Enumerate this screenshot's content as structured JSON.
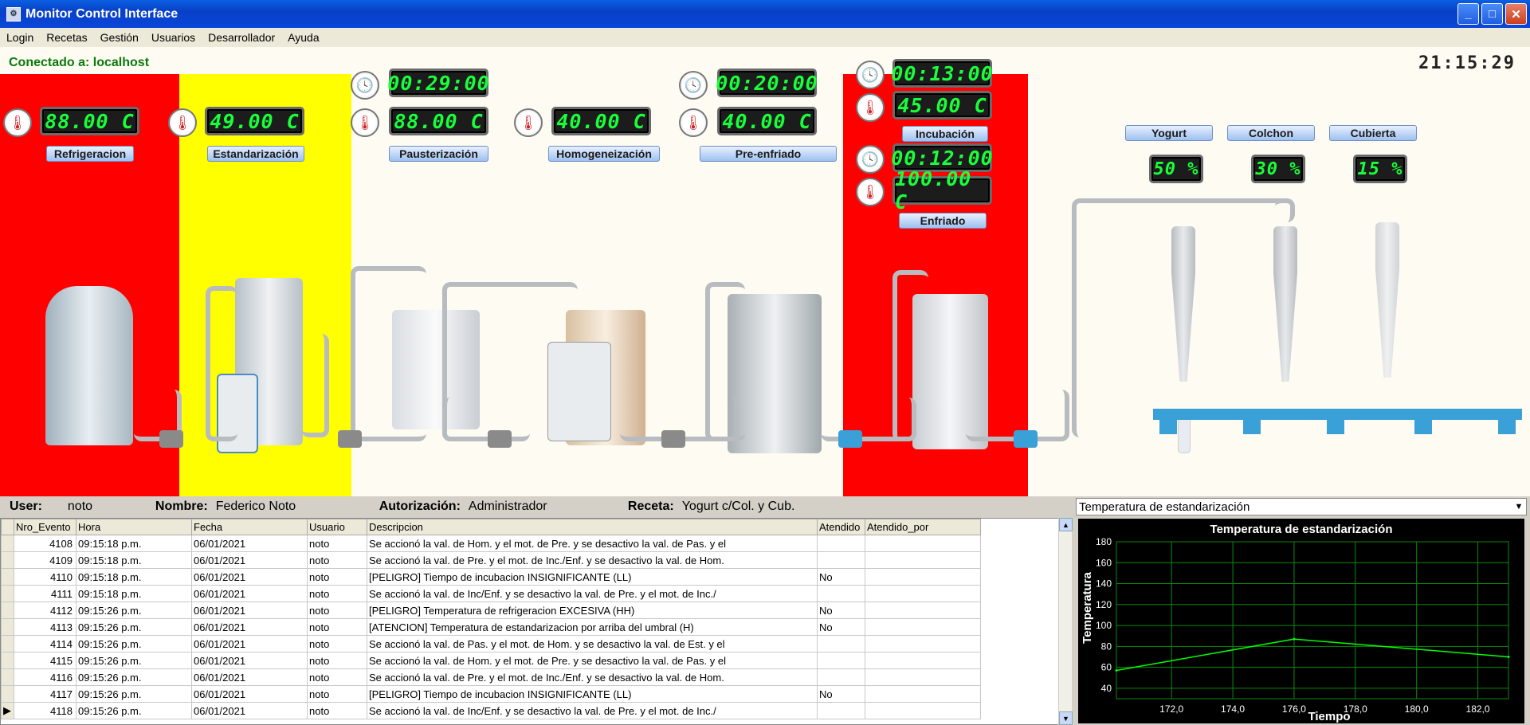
{
  "window": {
    "title": "Monitor Control Interface",
    "btn_min": "_",
    "btn_max": "□",
    "btn_close": "✕"
  },
  "menu": [
    "Login",
    "Recetas",
    "Gestión",
    "Usuarios",
    "Desarrollador",
    "Ayuda"
  ],
  "status": {
    "connection": "Conectado a: localhost",
    "clock": "21:15:29"
  },
  "stages": {
    "refrigeracion": {
      "label": "Refrigeracion",
      "temp": "88.00 C"
    },
    "estandarizacion": {
      "label": "Estandarización",
      "temp": "49.00 C"
    },
    "pasteurizacion": {
      "label": "Pausterización",
      "time": "00:29:00",
      "temp": "88.00 C"
    },
    "homogeneizacion": {
      "label": "Homogeneización",
      "temp": "40.00 C"
    },
    "preenfriado": {
      "label": "Pre-enfriado",
      "time": "00:20:00",
      "temp": "40.00 C"
    },
    "incubacion": {
      "label": "Incubación",
      "time": "00:13:00",
      "temp": "45.00 C"
    },
    "enfriado": {
      "label": "Enfriado",
      "time": "00:12:00",
      "temp": "100.00 C"
    }
  },
  "products": [
    {
      "label": "Yogurt",
      "value": "50 %"
    },
    {
      "label": "Colchon",
      "value": "30 %"
    },
    {
      "label": "Cubierta",
      "value": "15 %"
    }
  ],
  "colors": {
    "alarm": "#ff0000",
    "warning": "#ffff00",
    "normal": "#fdfbf2",
    "lcd": "#19ff3a",
    "chart_line": "#00ff00"
  },
  "info": {
    "user_label": "User:",
    "user": "noto",
    "name_label": "Nombre:",
    "name": "Federico Noto",
    "auth_label": "Autorización:",
    "auth": "Administrador",
    "recipe_label": "Receta:",
    "recipe": "Yogurt c/Col. y Cub."
  },
  "events": {
    "columns": [
      "Nro_Evento",
      "Hora",
      "Fecha",
      "Usuario",
      "Descripcion",
      "Atendido",
      "Atendido_por"
    ],
    "rows": [
      [
        "4108",
        "09:15:18 p.m.",
        "06/01/2021",
        "noto",
        "Se accionó la val. de Hom. y el mot. de Pre. y se desactivo la val. de Pas. y el",
        ""
      ],
      [
        "4109",
        "09:15:18 p.m.",
        "06/01/2021",
        "noto",
        "Se accionó la val. de Pre. y el mot. de Inc./Enf. y se desactivo la val. de Hom.",
        ""
      ],
      [
        "4110",
        "09:15:18 p.m.",
        "06/01/2021",
        "noto",
        "[PELIGRO] Tiempo de incubacion INSIGNIFICANTE (LL)",
        "No"
      ],
      [
        "4111",
        "09:15:18 p.m.",
        "06/01/2021",
        "noto",
        "Se accionó la val. de Inc/Enf. y se desactivo la val. de Pre. y el mot. de Inc./",
        ""
      ],
      [
        "4112",
        "09:15:26 p.m.",
        "06/01/2021",
        "noto",
        "[PELIGRO] Temperatura de refrigeracion EXCESIVA (HH)",
        "No"
      ],
      [
        "4113",
        "09:15:26 p.m.",
        "06/01/2021",
        "noto",
        "[ATENCION] Temperatura de estandarizacion por arriba del umbral (H)",
        "No"
      ],
      [
        "4114",
        "09:15:26 p.m.",
        "06/01/2021",
        "noto",
        "Se accionó la val. de Pas. y el mot. de Hom. y se desactivo la val. de Est. y el",
        ""
      ],
      [
        "4115",
        "09:15:26 p.m.",
        "06/01/2021",
        "noto",
        "Se accionó la val. de Hom. y el mot. de Pre. y se desactivo la val. de Pas. y el",
        ""
      ],
      [
        "4116",
        "09:15:26 p.m.",
        "06/01/2021",
        "noto",
        "Se accionó la val. de Pre. y el mot. de Inc./Enf. y se desactivo la val. de Hom.",
        ""
      ],
      [
        "4117",
        "09:15:26 p.m.",
        "06/01/2021",
        "noto",
        "[PELIGRO] Tiempo de incubacion INSIGNIFICANTE (LL)",
        "No"
      ],
      [
        "4118",
        "09:15:26 p.m.",
        "06/01/2021",
        "noto",
        "Se accionó la val. de Inc/Enf. y se desactivo la val. de Pre. y el mot. de Inc./",
        ""
      ]
    ]
  },
  "chart_select": "Temperatura de estandarización",
  "chart_data": {
    "type": "line",
    "title": "Temperatura de estandarización",
    "xlabel": "Tiempo",
    "ylabel": "Temperatura",
    "x": [
      170.2,
      176.0,
      183.0
    ],
    "y": [
      57,
      87,
      70
    ],
    "xlim": [
      170.2,
      183.0
    ],
    "ylim": [
      30,
      180
    ],
    "xticks": [
      "172,0",
      "174,0",
      "176,0",
      "178,0",
      "180,0",
      "182,0"
    ],
    "xtick_values": [
      172,
      174,
      176,
      178,
      180,
      182
    ],
    "yticks": [
      40,
      60,
      80,
      100,
      120,
      140,
      160,
      180
    ],
    "grid": true
  }
}
